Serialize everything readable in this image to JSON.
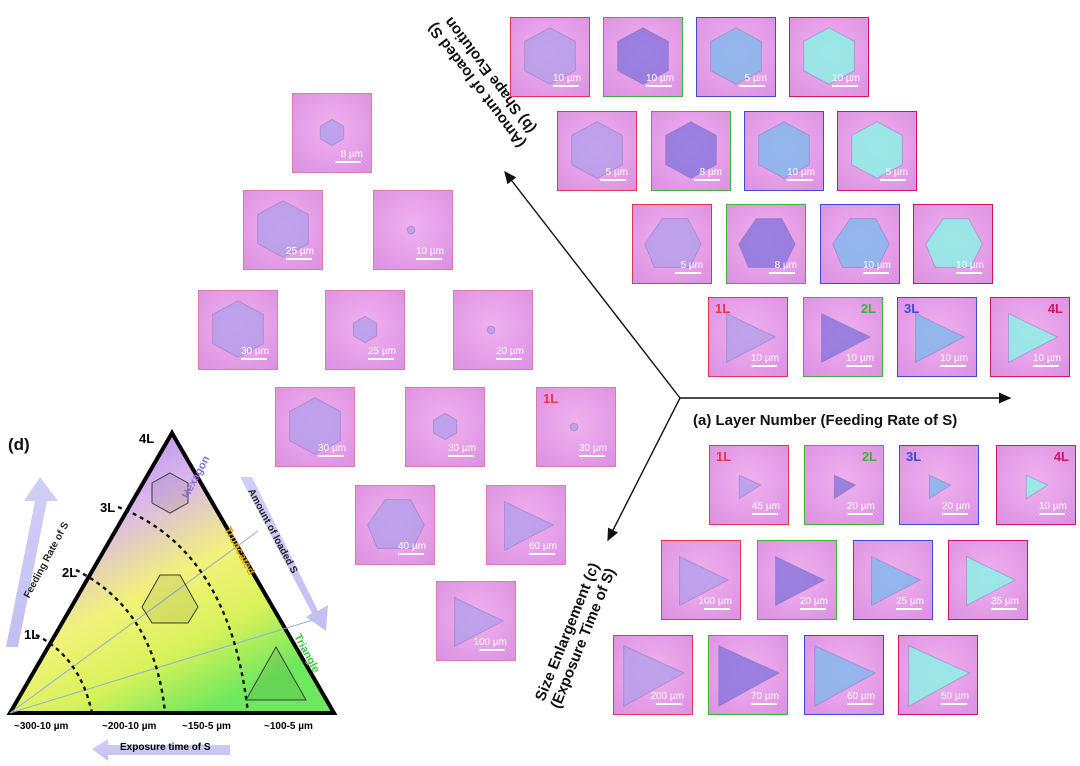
{
  "colors": {
    "red": "#e8344f",
    "green": "#3cb43c",
    "blue": "#3a4fd0",
    "magenta": "#d4145a",
    "tile_pink": "#e8a0e8",
    "hexagon_purple": "#8c6cd8",
    "truncated_yellow": "#e0a800",
    "triangle_green": "#3cc83c"
  },
  "axes": {
    "a": "(a)  Layer Number (Feeding Rate of S)",
    "b_line1": "(b) Shape Evolution",
    "b_line2": "(Amount of loaded S)",
    "c_line1": "Size Enlargement  (c)",
    "c_line2": "(Exposure Time of S)"
  },
  "panel_d": {
    "label": "(d)",
    "layers": [
      "1L",
      "2L",
      "3L",
      "4L"
    ],
    "bottom_labels": [
      "~300-10 µm",
      "~200-10 µm",
      "~150-5 µm",
      "~100-5 µm"
    ],
    "exposure_label": "Exposure time of  S",
    "feeding_label": "Feeding Rate of S",
    "loaded_label": "Amount of loaded S",
    "hexagon": "Hexagon",
    "truncated": "Truncated",
    "triangle": "Triangle"
  },
  "panel_a_tiles": [
    {
      "tag": "",
      "scale": "10 µm",
      "shape": "hex",
      "border": "red",
      "layer": 1
    },
    {
      "tag": "",
      "scale": "10 µm",
      "shape": "hex",
      "border": "green",
      "layer": 2
    },
    {
      "tag": "",
      "scale": "5 µm",
      "shape": "hex",
      "border": "blue",
      "layer": 3
    },
    {
      "tag": "",
      "scale": "10 µm",
      "shape": "hex",
      "border": "magenta",
      "layer": 4
    },
    {
      "tag": "",
      "scale": "5 µm",
      "shape": "hex",
      "border": "red",
      "layer": 1
    },
    {
      "tag": "",
      "scale": "8 µm",
      "shape": "hex",
      "border": "green",
      "layer": 2
    },
    {
      "tag": "",
      "scale": "10 µm",
      "shape": "hex",
      "border": "blue",
      "layer": 3
    },
    {
      "tag": "",
      "scale": "5 µm",
      "shape": "hex",
      "border": "magenta",
      "layer": 4
    },
    {
      "tag": "",
      "scale": "5 µm",
      "shape": "trunc",
      "border": "red",
      "layer": 1
    },
    {
      "tag": "",
      "scale": "8 µm",
      "shape": "trunc",
      "border": "green",
      "layer": 2
    },
    {
      "tag": "",
      "scale": "10 µm",
      "shape": "trunc",
      "border": "blue",
      "layer": 3
    },
    {
      "tag": "",
      "scale": "10 µm",
      "shape": "trunc",
      "border": "magenta",
      "layer": 4
    },
    {
      "tag": "1L",
      "scale": "10 µm",
      "shape": "tri",
      "border": "red",
      "layer": 1
    },
    {
      "tag": "2L",
      "scale": "10 µm",
      "shape": "tri",
      "border": "green",
      "layer": 2
    },
    {
      "tag": "3L",
      "scale": "10 µm",
      "shape": "tri",
      "border": "blue",
      "layer": 3
    },
    {
      "tag": "4L",
      "scale": "10 µm",
      "shape": "tri",
      "border": "magenta",
      "layer": 4
    }
  ],
  "panel_b_tiles": [
    {
      "tag": "",
      "scale": "8 µm",
      "shape": "hexsmall"
    },
    {
      "tag": "",
      "scale": "25 µm",
      "shape": "hex"
    },
    {
      "tag": "",
      "scale": "10 µm",
      "shape": "dot"
    },
    {
      "tag": "",
      "scale": "30 µm",
      "shape": "hex"
    },
    {
      "tag": "",
      "scale": "25 µm",
      "shape": "hexsmall"
    },
    {
      "tag": "",
      "scale": "20 µm",
      "shape": "dot"
    },
    {
      "tag": "",
      "scale": "30 µm",
      "shape": "hex"
    },
    {
      "tag": "",
      "scale": "30 µm",
      "shape": "hexsmall"
    },
    {
      "tag": "1L",
      "scale": "30 µm",
      "shape": "dot"
    },
    {
      "tag": "",
      "scale": "40 µm",
      "shape": "trunc"
    },
    {
      "tag": "",
      "scale": "60 µm",
      "shape": "tri"
    },
    {
      "tag": "",
      "scale": "100 µm",
      "shape": "tri"
    }
  ],
  "panel_c_tiles": [
    {
      "tag": "1L",
      "scale": "45 µm",
      "shape": "trismall",
      "border": "red",
      "layer": 1
    },
    {
      "tag": "2L",
      "scale": "20 µm",
      "shape": "trismall",
      "border": "green",
      "layer": 2
    },
    {
      "tag": "3L",
      "scale": "20 µm",
      "shape": "trismall",
      "border": "blue",
      "layer": 3
    },
    {
      "tag": "4L",
      "scale": "10 µm",
      "shape": "trismall",
      "border": "magenta",
      "layer": 4
    },
    {
      "tag": "",
      "scale": "100 µm",
      "shape": "tri",
      "border": "red",
      "layer": 1
    },
    {
      "tag": "",
      "scale": "20 µm",
      "shape": "tri",
      "border": "green",
      "layer": 2
    },
    {
      "tag": "",
      "scale": "25 µm",
      "shape": "tri",
      "border": "blue",
      "layer": 3
    },
    {
      "tag": "",
      "scale": "35 µm",
      "shape": "tri",
      "border": "magenta",
      "layer": 4
    },
    {
      "tag": "",
      "scale": "200 µm",
      "shape": "tribig",
      "border": "red",
      "layer": 1
    },
    {
      "tag": "",
      "scale": "70 µm",
      "shape": "tribig",
      "border": "green",
      "layer": 2
    },
    {
      "tag": "",
      "scale": "60 µm",
      "shape": "tribig",
      "border": "blue",
      "layer": 3
    },
    {
      "tag": "",
      "scale": "50 µm",
      "shape": "tribig",
      "border": "magenta",
      "layer": 4
    }
  ]
}
